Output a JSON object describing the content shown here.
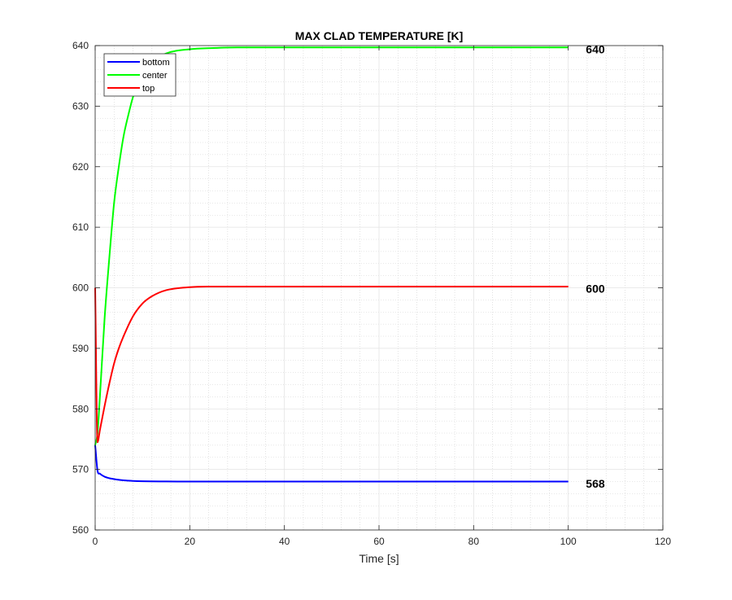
{
  "chart_data": {
    "type": "line",
    "title": "MAX CLAD TEMPERATURE [K]",
    "xlabel": "Time [s]",
    "ylabel": "",
    "xlim": [
      0,
      120
    ],
    "ylim": [
      560,
      640
    ],
    "xticks": [
      0,
      20,
      40,
      60,
      80,
      100,
      120
    ],
    "yticks": [
      560,
      570,
      580,
      590,
      600,
      610,
      620,
      630,
      640
    ],
    "grid": true,
    "minor_grid": true,
    "legend_position": "top-left",
    "series": [
      {
        "name": "bottom",
        "color": "#0000ff",
        "x": [
          0,
          0.5,
          1,
          2,
          4,
          6,
          8,
          10,
          15,
          20,
          30,
          40,
          60,
          80,
          100
        ],
        "y": [
          574,
          569.8,
          569.3,
          568.8,
          568.4,
          568.2,
          568.1,
          568.05,
          568.02,
          568,
          568,
          568,
          568,
          568,
          568
        ]
      },
      {
        "name": "center",
        "color": "#00ff00",
        "x": [
          0,
          0.5,
          1,
          2,
          3,
          4,
          5,
          6,
          7,
          8,
          10,
          12,
          15,
          20,
          25,
          30,
          40,
          60,
          80,
          100
        ],
        "y": [
          574,
          576,
          582,
          595,
          605,
          614,
          620,
          625,
          628.5,
          631.5,
          635.3,
          637.3,
          638.7,
          639.4,
          639.6,
          639.7,
          639.7,
          639.7,
          639.7,
          639.7
        ]
      },
      {
        "name": "top",
        "color": "#ff0000",
        "x": [
          0,
          0.5,
          1,
          2,
          3,
          4,
          5,
          6,
          8,
          10,
          12,
          15,
          20,
          25,
          30,
          40,
          60,
          80,
          100
        ],
        "y": [
          600,
          574.5,
          576.5,
          580.5,
          584.2,
          587.5,
          590,
          592,
          595.3,
          597.4,
          598.6,
          599.6,
          600.1,
          600.2,
          600.2,
          600.2,
          600.2,
          600.2,
          600.2
        ]
      }
    ],
    "annotations": [
      {
        "text": "640",
        "x": 102,
        "y": 639.5
      },
      {
        "text": "600",
        "x": 102,
        "y": 600
      },
      {
        "text": "568",
        "x": 102,
        "y": 567.8
      }
    ]
  }
}
